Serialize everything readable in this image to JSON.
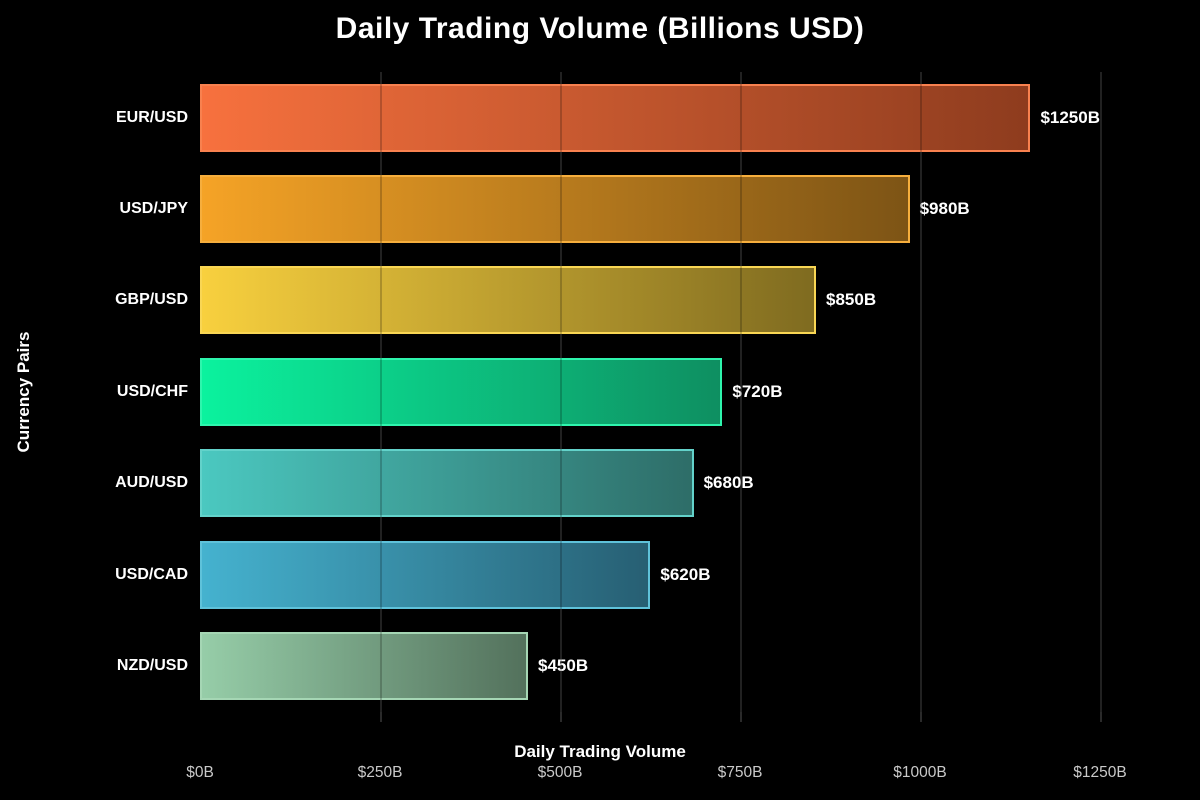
{
  "title": "Daily Trading Volume (Billions USD)",
  "chart_data": {
    "type": "bar",
    "orientation": "horizontal",
    "title": "Daily Trading Volume (Billions USD)",
    "xlabel": "Daily Trading Volume",
    "ylabel": "Currency Pairs",
    "xlim": [
      0,
      1250
    ],
    "grid": "vertical",
    "legend": "none",
    "background_color": "#000000",
    "text_color": "#ffffff",
    "tick_label_color": "#c9c9c9",
    "gridline_color": "#2a2a2a",
    "x_tick_values": [
      0,
      250,
      500,
      750,
      1000,
      1250
    ],
    "x_tick_labels": [
      "$0B",
      "$250B",
      "$500B",
      "$750B",
      "$1000B",
      "$1250B"
    ],
    "categories": [
      "EUR/USD",
      "USD/JPY",
      "GBP/USD",
      "USD/CHF",
      "AUD/USD",
      "USD/CAD",
      "NZD/USD"
    ],
    "values": [
      1250,
      980,
      850,
      720,
      680,
      620,
      450
    ],
    "bar_labels": [
      "$1250B",
      "$980B",
      "$850B",
      "$720B",
      "$680B",
      "$620B",
      "$450B"
    ],
    "bar_styles": [
      {
        "gradient_start": "#f7713e",
        "gradient_end": "#8e3c1e",
        "edge": "#f8814f"
      },
      {
        "gradient_start": "#f5a326",
        "gradient_end": "#7d5415",
        "edge": "#f6ae3d"
      },
      {
        "gradient_start": "#f8d03e",
        "gradient_end": "#7f6b20",
        "edge": "#f9d654"
      },
      {
        "gradient_start": "#0bf29e",
        "gradient_end": "#0e8f61",
        "edge": "#2ef5ad"
      },
      {
        "gradient_start": "#4bc8c0",
        "gradient_end": "#2e6d68",
        "edge": "#63d2ca"
      },
      {
        "gradient_start": "#45b2cf",
        "gradient_end": "#275f73",
        "edge": "#5fc2da"
      },
      {
        "gradient_start": "#96cda8",
        "gradient_end": "#53715c",
        "edge": "#a5d6b4"
      }
    ]
  }
}
